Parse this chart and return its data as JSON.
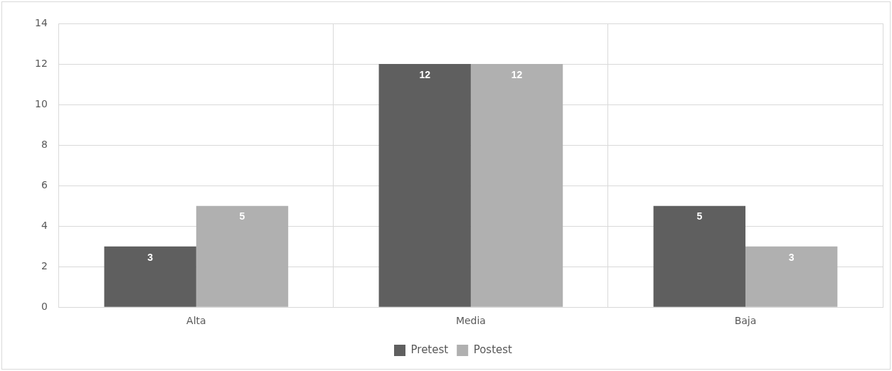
{
  "chart_data": {
    "type": "bar",
    "categories": [
      "Alta",
      "Media",
      "Baja"
    ],
    "series": [
      {
        "name": "Pretest",
        "color": "#5f5f5f",
        "values": [
          3,
          12,
          5
        ]
      },
      {
        "name": "Postest",
        "color": "#b0b0b0",
        "values": [
          5,
          12,
          3
        ]
      }
    ],
    "ylim": [
      0,
      14
    ],
    "yticks": [
      0,
      2,
      4,
      6,
      8,
      10,
      12,
      14
    ],
    "grid": true,
    "legend": "bottom",
    "data_labels": true
  }
}
